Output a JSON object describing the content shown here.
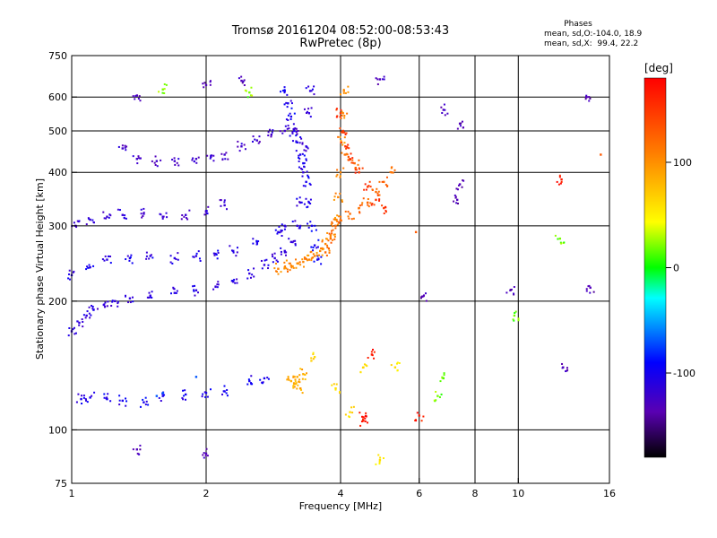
{
  "header": {
    "title_line1": "Tromsø 20161204 08:52:00-08:53:43",
    "title_line2": "RwPretec (8p)",
    "stats_title": "Phases",
    "stats_o": "mean, sd,O:-104.0, 18.9",
    "stats_x": "mean, sd,X:  99.4, 22.2"
  },
  "chart_data": {
    "type": "scatter",
    "xlabel": "Frequency [MHz]",
    "ylabel": "Stationary phase Virtual Height [km]",
    "x_scale": "log",
    "y_scale": "log",
    "xlim": [
      1,
      16
    ],
    "ylim": [
      75,
      750
    ],
    "x_ticks": [
      1,
      2,
      4,
      6,
      8,
      10,
      16
    ],
    "y_ticks": [
      75,
      100,
      200,
      300,
      400,
      500,
      600,
      750
    ],
    "grid_x": [
      2,
      4,
      6,
      8,
      10
    ],
    "grid_y": [
      100,
      200,
      300,
      400,
      500,
      600
    ],
    "colorbar": {
      "label": "[deg]",
      "range": [
        -180,
        180
      ],
      "ticks": [
        -100,
        0,
        100
      ]
    },
    "series": [
      {
        "phase": -110,
        "points": [
          [
            1.0,
            170
          ],
          [
            1.04,
            178
          ],
          [
            1.08,
            185
          ],
          [
            1.12,
            191
          ],
          [
            1.18,
            196
          ],
          [
            1.25,
            200
          ],
          [
            1.35,
            203
          ],
          [
            1.5,
            206
          ],
          [
            1.7,
            209
          ],
          [
            1.9,
            212
          ],
          [
            2.1,
            216
          ],
          [
            2.3,
            222
          ],
          [
            2.5,
            232
          ],
          [
            2.7,
            243
          ],
          [
            2.85,
            252
          ],
          [
            3.0,
            262
          ],
          [
            3.1,
            275
          ],
          [
            3.2,
            300
          ],
          [
            3.25,
            340
          ],
          [
            3.3,
            400
          ],
          [
            3.35,
            460
          ],
          [
            3.4,
            550
          ],
          [
            3.42,
            620
          ]
        ]
      },
      {
        "phase": -100,
        "points": [
          [
            3.0,
            620
          ],
          [
            3.05,
            580
          ],
          [
            3.1,
            540
          ],
          [
            3.15,
            500
          ],
          [
            3.2,
            470
          ],
          [
            3.25,
            440
          ],
          [
            3.3,
            420
          ],
          [
            3.35,
            380
          ],
          [
            3.4,
            340
          ],
          [
            3.45,
            300
          ],
          [
            3.5,
            270
          ],
          [
            3.55,
            250
          ]
        ]
      },
      {
        "phase": -115,
        "points": [
          [
            1.02,
            300
          ],
          [
            1.1,
            310
          ],
          [
            1.2,
            315
          ],
          [
            1.3,
            318
          ],
          [
            1.45,
            320
          ],
          [
            1.6,
            315
          ],
          [
            1.8,
            318
          ],
          [
            2.0,
            325
          ],
          [
            2.2,
            335
          ]
        ]
      },
      {
        "phase": -105,
        "points": [
          [
            1.0,
            230
          ],
          [
            1.1,
            240
          ],
          [
            1.2,
            250
          ],
          [
            1.35,
            252
          ],
          [
            1.5,
            255
          ],
          [
            1.7,
            252
          ],
          [
            1.9,
            255
          ],
          [
            2.1,
            258
          ],
          [
            2.3,
            262
          ],
          [
            2.6,
            275
          ],
          [
            2.9,
            290
          ],
          [
            3.0,
            300
          ]
        ]
      },
      {
        "phase": -120,
        "points": [
          [
            1.3,
            455
          ],
          [
            1.4,
            430
          ],
          [
            1.55,
            425
          ],
          [
            1.7,
            425
          ],
          [
            1.9,
            430
          ],
          [
            2.05,
            435
          ],
          [
            2.2,
            440
          ],
          [
            2.4,
            460
          ],
          [
            2.6,
            475
          ],
          [
            2.8,
            490
          ],
          [
            3.0,
            500
          ],
          [
            3.15,
            505
          ]
        ]
      },
      {
        "phase": -100,
        "points": [
          [
            1.05,
            118
          ],
          [
            1.1,
            119
          ],
          [
            1.2,
            118
          ],
          [
            1.3,
            117
          ],
          [
            1.45,
            116
          ],
          [
            1.6,
            120
          ],
          [
            1.8,
            121
          ],
          [
            2.0,
            122
          ],
          [
            2.2,
            123
          ],
          [
            2.5,
            130
          ],
          [
            2.7,
            132
          ]
        ]
      },
      {
        "phase": -70,
        "points": [
          [
            1.55,
            120
          ],
          [
            1.6,
            122
          ],
          [
            1.9,
            133
          ]
        ]
      },
      {
        "phase": 105,
        "points": [
          [
            2.9,
            238
          ],
          [
            3.0,
            240
          ],
          [
            3.1,
            242
          ],
          [
            3.2,
            245
          ],
          [
            3.3,
            247
          ],
          [
            3.4,
            250
          ],
          [
            3.5,
            255
          ],
          [
            3.6,
            262
          ],
          [
            3.7,
            272
          ],
          [
            3.8,
            285
          ],
          [
            3.9,
            310
          ],
          [
            3.95,
            350
          ],
          [
            4.0,
            400
          ],
          [
            4.02,
            470
          ],
          [
            4.05,
            550
          ],
          [
            4.07,
            620
          ]
        ]
      },
      {
        "phase": 120,
        "points": [
          [
            3.7,
            260
          ],
          [
            3.8,
            280
          ],
          [
            3.9,
            300
          ],
          [
            4.0,
            310
          ],
          [
            4.2,
            320
          ],
          [
            4.4,
            330
          ],
          [
            4.6,
            340
          ],
          [
            4.8,
            360
          ],
          [
            5.0,
            380
          ],
          [
            5.2,
            400
          ],
          [
            4.1,
            440
          ],
          [
            4.3,
            420
          ]
        ]
      },
      {
        "phase": 150,
        "points": [
          [
            4.0,
            550
          ],
          [
            4.05,
            500
          ],
          [
            4.1,
            460
          ],
          [
            4.2,
            430
          ],
          [
            4.4,
            400
          ],
          [
            4.6,
            370
          ],
          [
            4.8,
            345
          ],
          [
            5.0,
            330
          ]
        ]
      },
      {
        "phase": 85,
        "points": [
          [
            3.1,
            130
          ],
          [
            3.15,
            128
          ],
          [
            3.2,
            133
          ],
          [
            3.25,
            125
          ],
          [
            3.3,
            135
          ]
        ]
      },
      {
        "phase": 60,
        "points": [
          [
            3.5,
            148
          ],
          [
            3.9,
            125
          ],
          [
            4.2,
            110
          ],
          [
            4.5,
            140
          ],
          [
            4.9,
            85
          ],
          [
            5.3,
            140
          ]
        ]
      },
      {
        "phase": 165,
        "points": [
          [
            4.5,
            105
          ],
          [
            4.5,
            107
          ],
          [
            4.7,
            150
          ],
          [
            6.0,
            108
          ],
          [
            12.5,
            385
          ]
        ]
      },
      {
        "phase": -130,
        "points": [
          [
            1.4,
            605
          ],
          [
            2.0,
            640
          ],
          [
            2.4,
            655
          ],
          [
            4.9,
            660
          ],
          [
            6.8,
            560
          ],
          [
            7.4,
            520
          ],
          [
            7.4,
            375
          ],
          [
            7.3,
            345
          ],
          [
            9.6,
            212
          ],
          [
            14.2,
            600
          ],
          [
            14.5,
            215
          ],
          [
            12.6,
            140
          ],
          [
            1.4,
            90
          ],
          [
            2.0,
            88
          ],
          [
            6.1,
            205
          ]
        ]
      },
      {
        "phase": 20,
        "points": [
          [
            1.6,
            625
          ],
          [
            2.5,
            615
          ],
          [
            6.8,
            132
          ],
          [
            6.6,
            120
          ],
          [
            12.4,
            280
          ],
          [
            9.8,
            185
          ]
        ]
      },
      {
        "phase": 130,
        "points": [
          [
            5.9,
            290
          ],
          [
            15.3,
            440
          ]
        ]
      }
    ]
  }
}
